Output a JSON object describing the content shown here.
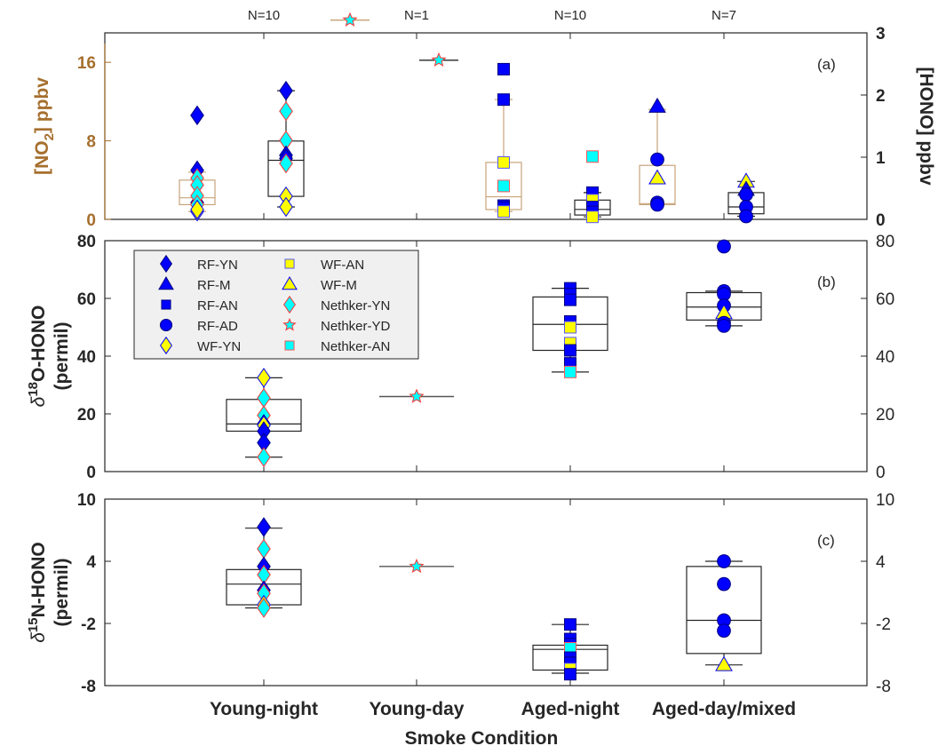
{
  "chart_data": {
    "type": "box",
    "xlabel": "Smoke Condition",
    "categories": [
      "Young-night",
      "Young-day",
      "Aged-night",
      "Aged-day/mixed"
    ],
    "counts": [
      "N=10",
      "N=1",
      "N=10",
      "N=7"
    ],
    "colors": {
      "no2_axis": "#A66F2E",
      "no2_box": "#C8A47A",
      "box": "#262626",
      "blue": "#0000FF",
      "yellow": "#FFFF00",
      "cyan": "#00FFFF",
      "red_edge": "#FF3333",
      "legend_bg": "#F0F0F0"
    },
    "legend": [
      {
        "label": "RF-YN",
        "marker": "diamond",
        "fill": "#0000FF",
        "edge": "#000080"
      },
      {
        "label": "RF-M",
        "marker": "triangle",
        "fill": "#0000FF",
        "edge": "#000080"
      },
      {
        "label": "RF-AN",
        "marker": "square",
        "fill": "#0000FF",
        "edge": "#000080"
      },
      {
        "label": "RF-AD",
        "marker": "circle",
        "fill": "#0000FF",
        "edge": "#000080"
      },
      {
        "label": "WF-YN",
        "marker": "diamond",
        "fill": "#FFFF00",
        "edge": "#0000FF"
      },
      {
        "label": "WF-AN",
        "marker": "square",
        "fill": "#FFFF00",
        "edge": "#5555FF"
      },
      {
        "label": "WF-M",
        "marker": "triangle",
        "fill": "#FFFF00",
        "edge": "#0000FF"
      },
      {
        "label": "Nethker-YN",
        "marker": "diamond",
        "fill": "#00FFFF",
        "edge": "#FF3333"
      },
      {
        "label": "Nethker-YD",
        "marker": "star",
        "fill": "#00FFFF",
        "edge": "#FF3333"
      },
      {
        "label": "Nethker-AN",
        "marker": "square",
        "fill": "#00FFFF",
        "edge": "#FF5555"
      }
    ],
    "panels": [
      {
        "id": "a",
        "label": "(a)",
        "ylabel_left": "[NO2] ppbv",
        "ylabel_right": "[HONO] ppbv",
        "ylim_left": [
          0,
          19
        ],
        "yticks_left": [
          0,
          8,
          16
        ],
        "ylim_right": [
          0,
          3
        ],
        "yticks_right": [
          0,
          1,
          2,
          3
        ],
        "groups": [
          {
            "category": "Young-night",
            "axis": "left",
            "variable": "NO2",
            "box": {
              "q1": 1.5,
              "median": 2.2,
              "q3": 4.0,
              "whisker_low": 0.8,
              "whisker_high": 4.8
            },
            "points": [
              {
                "s": "RF-YN",
                "y": 10.6
              },
              {
                "s": "RF-YN",
                "y": 5.0
              },
              {
                "s": "RF-YN",
                "y": 1.7
              },
              {
                "s": "Nethker-YN",
                "y": 4.2
              },
              {
                "s": "Nethker-YN",
                "y": 3.5
              },
              {
                "s": "Nethker-YN",
                "y": 2.4
              },
              {
                "s": "Nethker-YN",
                "y": 1.5
              },
              {
                "s": "WF-YN",
                "y": 0.8
              },
              {
                "s": "WF-YN",
                "y": 1.0
              }
            ]
          },
          {
            "category": "Young-night",
            "axis": "right",
            "variable": "HONO",
            "box": {
              "q1": 0.37,
              "median": 0.95,
              "q3": 1.26,
              "whisker_low": 0.2,
              "whisker_high": 2.07
            },
            "points": [
              {
                "s": "RF-YN",
                "y": 2.07
              },
              {
                "s": "Nethker-YN",
                "y": 1.74
              },
              {
                "s": "Nethker-YN",
                "y": 1.27
              },
              {
                "s": "RF-YN",
                "y": 1.03
              },
              {
                "s": "RF-YN",
                "y": 0.98
              },
              {
                "s": "Nethker-YN",
                "y": 0.9
              },
              {
                "s": "WF-YN",
                "y": 0.37
              },
              {
                "s": "WF-YN",
                "y": 0.2
              }
            ]
          },
          {
            "category": "Young-day",
            "axis": "left",
            "variable": "NO2",
            "box": {
              "q1": 20.3,
              "median": 20.3,
              "q3": 20.3,
              "whisker_low": 20.3,
              "whisker_high": 20.3
            },
            "points": [
              {
                "s": "Nethker-YD",
                "y": 20.3
              }
            ]
          },
          {
            "category": "Young-day",
            "axis": "right",
            "variable": "HONO",
            "box": {
              "q1": 2.56,
              "median": 2.56,
              "q3": 2.56,
              "whisker_low": 2.56,
              "whisker_high": 2.56
            },
            "points": [
              {
                "s": "Nethker-YD",
                "y": 2.56
              }
            ]
          },
          {
            "category": "Aged-night",
            "axis": "left",
            "variable": "NO2",
            "box": {
              "q1": 1.0,
              "median": 2.3,
              "q3": 5.8,
              "whisker_low": 0.8,
              "whisker_high": 12.2
            },
            "points": [
              {
                "s": "RF-AN",
                "y": 15.3
              },
              {
                "s": "RF-AN",
                "y": 12.2
              },
              {
                "s": "WF-AN",
                "y": 5.8
              },
              {
                "s": "Nethker-AN",
                "y": 3.4
              },
              {
                "s": "RF-AN",
                "y": 1.4
              },
              {
                "s": "RF-AN",
                "y": 1.2
              },
              {
                "s": "WF-AN",
                "y": 0.8
              }
            ]
          },
          {
            "category": "Aged-night",
            "axis": "right",
            "variable": "HONO",
            "box": {
              "q1": 0.07,
              "median": 0.16,
              "q3": 0.31,
              "whisker_low": 0.04,
              "whisker_high": 0.43
            },
            "points": [
              {
                "s": "Nethker-AN",
                "y": 1.01
              },
              {
                "s": "RF-AN",
                "y": 0.43
              },
              {
                "s": "WF-AN",
                "y": 0.31
              },
              {
                "s": "RF-AN",
                "y": 0.2
              },
              {
                "s": "RF-AN",
                "y": 0.12
              },
              {
                "s": "WF-AN",
                "y": 0.04
              }
            ]
          },
          {
            "category": "Aged-day/mixed",
            "axis": "left",
            "variable": "NO2",
            "box": {
              "q1": 1.5,
              "median": 1.6,
              "q3": 5.5,
              "whisker_low": 1.5,
              "whisker_high": 11.2
            },
            "points": [
              {
                "s": "RF-M",
                "y": 11.5
              },
              {
                "s": "RF-AD",
                "y": 6.1
              },
              {
                "s": "WF-M",
                "y": 4.2
              },
              {
                "s": "RF-AD",
                "y": 1.7
              },
              {
                "s": "RF-AD",
                "y": 1.5
              }
            ]
          },
          {
            "category": "Aged-day/mixed",
            "axis": "right",
            "variable": "HONO",
            "box": {
              "q1": 0.09,
              "median": 0.2,
              "q3": 0.43,
              "whisker_low": 0.05,
              "whisker_high": 0.61
            },
            "points": [
              {
                "s": "WF-M",
                "y": 0.61
              },
              {
                "s": "RF-M",
                "y": 0.48
              },
              {
                "s": "RF-AD",
                "y": 0.4
              },
              {
                "s": "RF-AD",
                "y": 0.2
              },
              {
                "s": "RF-AD",
                "y": 0.05
              }
            ]
          }
        ]
      },
      {
        "id": "b",
        "label": "(b)",
        "ylabel_left_line1": "δ18O-HONO",
        "ylabel_left_line2": "(permil)",
        "ylim": [
          0,
          80
        ],
        "yticks": [
          0,
          20,
          40,
          60,
          80
        ],
        "groups": [
          {
            "category": "Young-night",
            "box": {
              "q1": 14.0,
              "median": 16.5,
              "q3": 25.0,
              "whisker_low": 5.0,
              "whisker_high": 32.5
            },
            "points": [
              {
                "s": "WF-YN",
                "y": 32.5
              },
              {
                "s": "Nethker-YN",
                "y": 25.5
              },
              {
                "s": "Nethker-YN",
                "y": 19.5
              },
              {
                "s": "RF-YN",
                "y": 16.5
              },
              {
                "s": "WF-YN",
                "y": 16.0
              },
              {
                "s": "RF-YN",
                "y": 14.0
              },
              {
                "s": "RF-YN",
                "y": 10.0
              },
              {
                "s": "Nethker-YN",
                "y": 5.0
              }
            ]
          },
          {
            "category": "Young-day",
            "box": {
              "q1": 26.0,
              "median": 26.0,
              "q3": 26.0,
              "whisker_low": 26.0,
              "whisker_high": 26.0
            },
            "points": [
              {
                "s": "Nethker-YD",
                "y": 26.0
              }
            ]
          },
          {
            "category": "Aged-night",
            "box": {
              "q1": 42.0,
              "median": 51.0,
              "q3": 60.5,
              "whisker_low": 34.5,
              "whisker_high": 63.5
            },
            "points": [
              {
                "s": "RF-AN",
                "y": 63.5
              },
              {
                "s": "RF-AN",
                "y": 61.5
              },
              {
                "s": "RF-AN",
                "y": 59.5
              },
              {
                "s": "RF-AN",
                "y": 52.0
              },
              {
                "s": "WF-AN",
                "y": 50.0
              },
              {
                "s": "WF-AN",
                "y": 44.5
              },
              {
                "s": "RF-AN",
                "y": 42.0
              },
              {
                "s": "RF-AN",
                "y": 37.5
              },
              {
                "s": "Nethker-AN",
                "y": 34.5
              }
            ]
          },
          {
            "category": "Aged-day/mixed",
            "box": {
              "q1": 52.5,
              "median": 57.0,
              "q3": 62.0,
              "whisker_low": 50.5,
              "whisker_high": 62.5
            },
            "points": [
              {
                "s": "RF-AD",
                "y": 78.0
              },
              {
                "s": "RF-AD",
                "y": 62.5
              },
              {
                "s": "RF-AD",
                "y": 61.5
              },
              {
                "s": "RF-AD",
                "y": 57.5
              },
              {
                "s": "WF-M",
                "y": 55.0
              },
              {
                "s": "RF-AD",
                "y": 51.5
              },
              {
                "s": "RF-AD",
                "y": 50.5
              }
            ]
          }
        ]
      },
      {
        "id": "c",
        "label": "(c)",
        "ylabel_left_line1": "δ15N-HONO",
        "ylabel_left_line2": "(permil)",
        "ylim": [
          -8,
          10
        ],
        "yticks": [
          -8,
          -2,
          4,
          10
        ],
        "groups": [
          {
            "category": "Young-night",
            "box": {
              "q1": -0.2,
              "median": 1.8,
              "q3": 3.2,
              "whisker_low": -0.5,
              "whisker_high": 7.2
            },
            "points": [
              {
                "s": "RF-YN",
                "y": 7.3
              },
              {
                "s": "Nethker-YN",
                "y": 5.2
              },
              {
                "s": "RF-YN",
                "y": 3.5
              },
              {
                "s": "Nethker-YN",
                "y": 2.7
              },
              {
                "s": "RF-YN",
                "y": 1.2
              },
              {
                "s": "Nethker-YN",
                "y": 0.9
              },
              {
                "s": "WF-YN",
                "y": -0.2
              },
              {
                "s": "Nethker-YN",
                "y": -0.5
              }
            ]
          },
          {
            "category": "Young-day",
            "box": {
              "q1": 3.5,
              "median": 3.5,
              "q3": 3.5,
              "whisker_low": 3.5,
              "whisker_high": 3.5
            },
            "points": [
              {
                "s": "Nethker-YD",
                "y": 3.5
              }
            ]
          },
          {
            "category": "Aged-night",
            "box": {
              "q1": -6.5,
              "median": -4.5,
              "q3": -4.1,
              "whisker_low": -6.8,
              "whisker_high": -2.1
            },
            "points": [
              {
                "s": "RF-AN",
                "y": -2.1
              },
              {
                "s": "RF-AN",
                "y": -3.5
              },
              {
                "s": "RF-AN",
                "y": -4.0
              },
              {
                "s": "Nethker-AN",
                "y": -4.4
              },
              {
                "s": "RF-AN",
                "y": -5.3
              },
              {
                "s": "RF-AN",
                "y": -5.8
              },
              {
                "s": "WF-AN",
                "y": -6.4
              },
              {
                "s": "RF-AN",
                "y": -6.9
              }
            ]
          },
          {
            "category": "Aged-day/mixed",
            "box": {
              "q1": -4.9,
              "median": -1.7,
              "q3": 3.5,
              "whisker_low": -6.0,
              "whisker_high": 4.0
            },
            "points": [
              {
                "s": "RF-AD",
                "y": 4.0
              },
              {
                "s": "RF-AD",
                "y": 1.8
              },
              {
                "s": "RF-AD",
                "y": -1.7
              },
              {
                "s": "RF-AD",
                "y": -2.7
              },
              {
                "s": "WF-M",
                "y": -6.0
              }
            ]
          }
        ]
      }
    ]
  }
}
